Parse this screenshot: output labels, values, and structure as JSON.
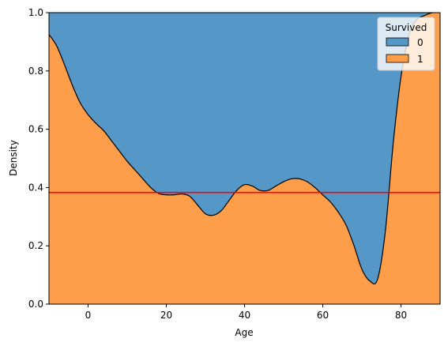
{
  "chart_data": {
    "type": "area",
    "subtype": "stacked-kde-fill",
    "xlabel": "Age",
    "ylabel": "Density",
    "xlim": [
      -10,
      90
    ],
    "ylim": [
      0,
      1
    ],
    "xticks": [
      0,
      20,
      40,
      60,
      80
    ],
    "yticks": [
      0.0,
      0.2,
      0.4,
      0.6,
      0.8,
      1.0
    ],
    "xtick_labels": [
      "0",
      "20",
      "40",
      "60",
      "80"
    ],
    "ytick_labels": [
      "0.0",
      "0.2",
      "0.4",
      "0.6",
      "0.8",
      "1.0"
    ],
    "grid": false,
    "legend": {
      "title": "Survived",
      "placement": "top-right",
      "entries": [
        {
          "label": "0",
          "color": "#5597c7"
        },
        {
          "label": "1",
          "color": "#ff9e4a"
        }
      ]
    },
    "series": [
      {
        "name": "0",
        "color": "#5597c7",
        "fill": "remainder-above-boundary"
      },
      {
        "name": "1",
        "color": "#ff9e4a",
        "fill": "below-boundary"
      }
    ],
    "boundary": {
      "x": [
        -10,
        -8,
        -6,
        -4,
        -2,
        0,
        2,
        4,
        6,
        8,
        10,
        12,
        14,
        16,
        18,
        20,
        22,
        24,
        26,
        28,
        30,
        32,
        34,
        36,
        38,
        40,
        42,
        44,
        46,
        48,
        50,
        52,
        54,
        56,
        58,
        60,
        62,
        64,
        66,
        68,
        70,
        72,
        74,
        76,
        78,
        80,
        82,
        84,
        86,
        88,
        90
      ],
      "y": [
        0.925,
        0.885,
        0.82,
        0.75,
        0.69,
        0.65,
        0.62,
        0.595,
        0.56,
        0.525,
        0.49,
        0.46,
        0.43,
        0.4,
        0.38,
        0.375,
        0.375,
        0.378,
        0.37,
        0.34,
        0.31,
        0.305,
        0.32,
        0.355,
        0.39,
        0.41,
        0.405,
        0.39,
        0.39,
        0.405,
        0.42,
        0.43,
        0.43,
        0.42,
        0.4,
        0.375,
        0.35,
        0.315,
        0.27,
        0.2,
        0.12,
        0.08,
        0.085,
        0.25,
        0.55,
        0.78,
        0.92,
        0.975,
        0.99,
        1.0,
        1.0
      ]
    },
    "hline": {
      "y": 0.383,
      "color": "#ff0000"
    }
  }
}
